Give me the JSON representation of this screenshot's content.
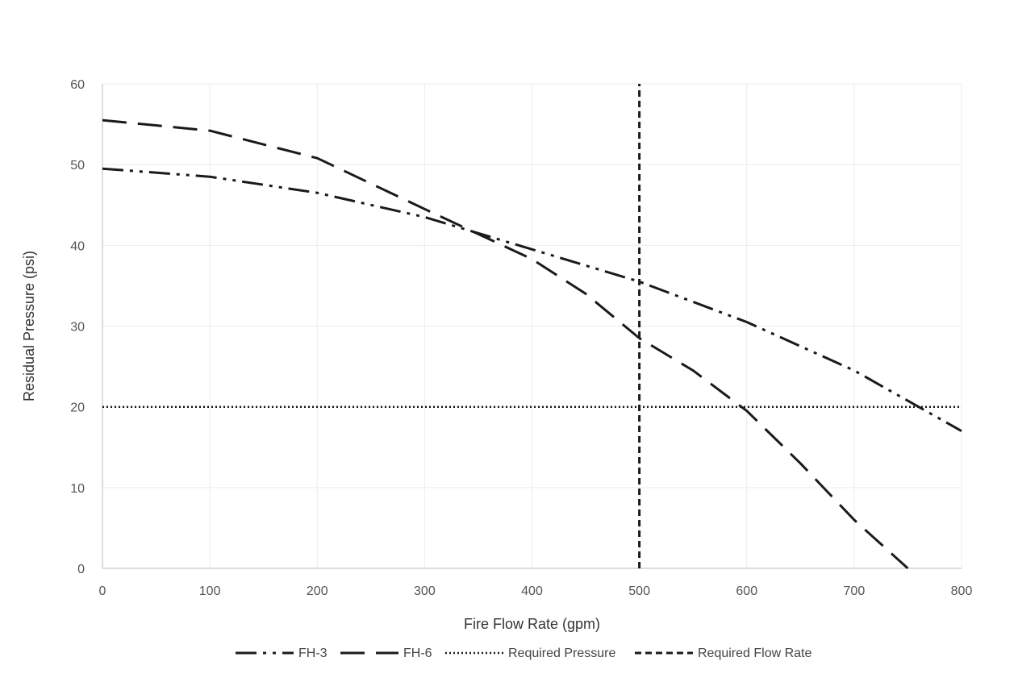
{
  "chart_data": {
    "type": "line",
    "title": "",
    "xlabel": "Fire Flow Rate (gpm)",
    "ylabel": "Residual Pressure (psi)",
    "xlim": [
      0,
      800
    ],
    "ylim": [
      0,
      60
    ],
    "x_ticks": [
      0,
      100,
      200,
      300,
      400,
      500,
      600,
      700,
      800
    ],
    "x_tick_labels": [
      "0",
      "100",
      "200",
      "300",
      "400",
      "500",
      "600",
      "700",
      "800"
    ],
    "y_ticks": [
      0,
      10,
      20,
      30,
      40,
      50,
      60
    ],
    "y_tick_labels": [
      "0",
      "10",
      "20",
      "30",
      "40",
      "50",
      "60"
    ],
    "grid": true,
    "legend_position": "bottom",
    "series": [
      {
        "name": "FH-3",
        "line_style": "dash-dot-dot",
        "color": "#1a1a1a",
        "points": [
          [
            0,
            49.5
          ],
          [
            100,
            48.5
          ],
          [
            200,
            46.5
          ],
          [
            300,
            43.5
          ],
          [
            400,
            39.5
          ],
          [
            500,
            35.5
          ],
          [
            600,
            30.5
          ],
          [
            700,
            24.5
          ],
          [
            800,
            17
          ]
        ]
      },
      {
        "name": "FH-6",
        "line_style": "long-dash",
        "color": "#1a1a1a",
        "points": [
          [
            0,
            55.5
          ],
          [
            100,
            54.2
          ],
          [
            200,
            50.8
          ],
          [
            300,
            44.5
          ],
          [
            400,
            38.3
          ],
          [
            450,
            34
          ],
          [
            500,
            28.5
          ],
          [
            550,
            24.5
          ],
          [
            600,
            19.5
          ],
          [
            650,
            13
          ],
          [
            700,
            6
          ],
          [
            750,
            0
          ]
        ]
      },
      {
        "name": "Required Pressure",
        "line_style": "dotted",
        "color": "#1a1a1a",
        "points": [
          [
            0,
            20
          ],
          [
            800,
            20
          ]
        ]
      },
      {
        "name": "Required Flow Rate",
        "line_style": "short-dash",
        "color": "#1a1a1a",
        "points": [
          [
            500,
            0
          ],
          [
            500,
            60
          ]
        ]
      }
    ]
  }
}
